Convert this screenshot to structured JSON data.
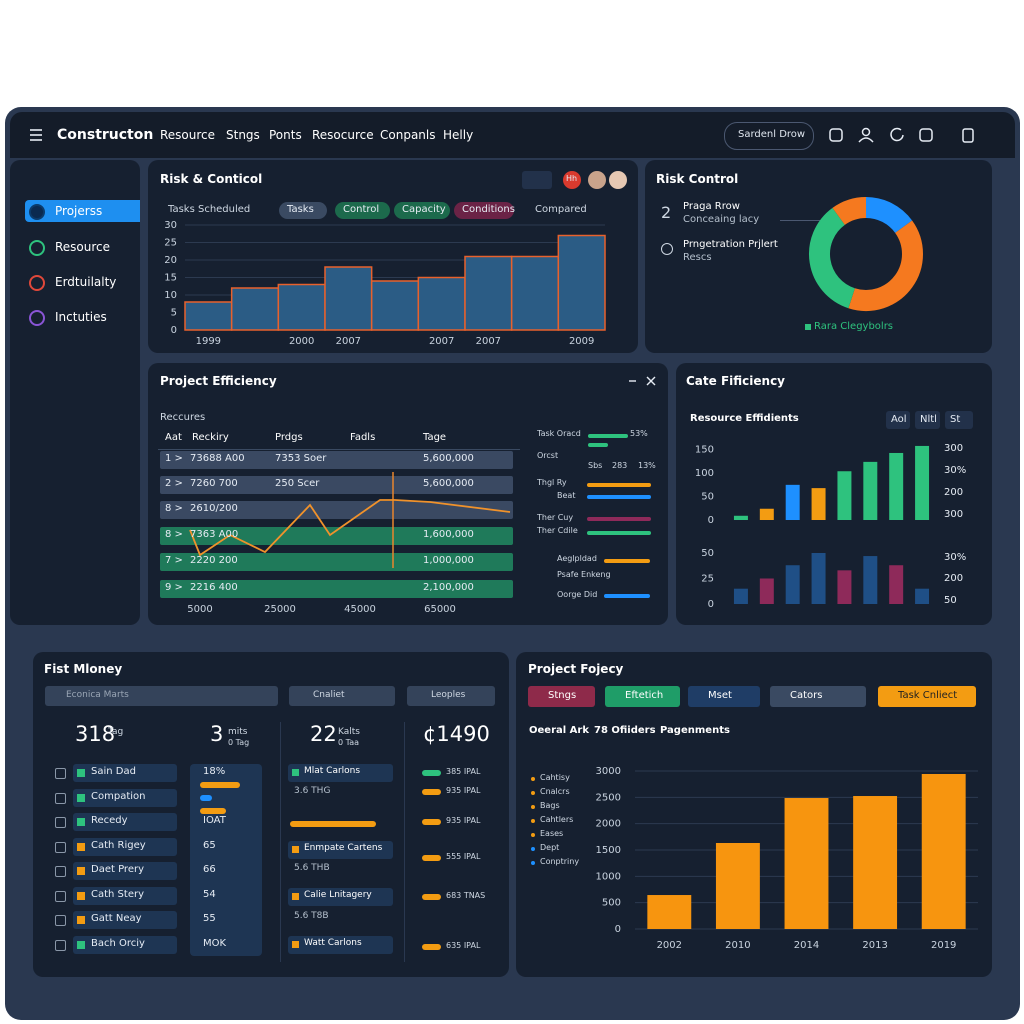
{
  "header": {
    "brand": "Constructon",
    "nav": [
      "Resource",
      "Stngs",
      "Ponts",
      "Resocurce",
      "Conpanls",
      "Helly"
    ],
    "search": "Sardenl Drow"
  },
  "sidebar": {
    "items": [
      "Projerss",
      "Resource",
      "Erdtuilalty",
      "Inctuties"
    ]
  },
  "risk_panel": {
    "title": "Risk & Conticol",
    "badge": "Hh",
    "caption": "Tasks Scheduled",
    "chips": [
      "Tasks",
      "Control",
      "Capacity",
      "Conditions"
    ],
    "trailing": "Compared"
  },
  "risk_control": {
    "title": "Risk Control",
    "num": "2",
    "items": [
      {
        "title": "Praga Rrow",
        "sub": "Conceaing lacy"
      },
      {
        "title": "Prngetration Prjlert",
        "sub": "Rescs"
      }
    ],
    "legend": "Rara Clegybolrs"
  },
  "efficiency": {
    "title": "Project Efficiency",
    "subtitle": "Reccures",
    "columns": [
      "Aat",
      "Reckiry",
      "Prdgs",
      "Fadls",
      "Tage"
    ],
    "rows": [
      {
        "idx": "1 >",
        "code": "73688 A00",
        "name": "7353 Soer",
        "total": "5,600,000"
      },
      {
        "idx": "2 >",
        "code": "7260 700",
        "name": "250 Scer",
        "total": "5,600,000"
      },
      {
        "idx": "8 >",
        "code": "2610/200"
      },
      {
        "idx": "8 >",
        "code": "7363 A00",
        "total": "1,600,000"
      },
      {
        "idx": "7 >",
        "code": "2220 200",
        "total": "1,000,000"
      },
      {
        "idx": "9 >",
        "code": "2216 400",
        "total": "2,100,000"
      }
    ],
    "side": [
      "Task Oracd",
      "53%",
      "Orcst",
      "Sbs",
      "283",
      "13%",
      "Thgl Ry",
      "Beat",
      "Ther Cuy",
      "Ther Cdile",
      "Aeglpldad",
      "Psafe Enkeng",
      "Oorge Did"
    ]
  },
  "resource_panel": {
    "title": "Cate Fificiency",
    "subtitle": "Resource Effidients",
    "buttons": [
      "Aol",
      "Nltl",
      "St"
    ],
    "right_top": [
      "300",
      "30%",
      "200",
      "300"
    ],
    "right_bottom": [
      "30%",
      "200",
      "50"
    ]
  },
  "money": {
    "title": "Fist Mloney",
    "search": "Econica Marts",
    "filters": [
      "Cnaliet",
      "Leoples"
    ],
    "stats": [
      {
        "value": "318",
        "unit": "Tag"
      },
      {
        "value": "3",
        "unit": "mits",
        "sub": "0 Tag"
      },
      {
        "value": "22",
        "unit": "Kalts",
        "sub": "0 Taa"
      },
      {
        "value": "¢1490"
      }
    ],
    "names": [
      "Sain Dad",
      "Compation",
      "Recedy",
      "Cath Rigey",
      "Daet Prery",
      "Cath Stery",
      "Gatt Neay",
      "Bach Orciy"
    ],
    "metrics": [
      "18%",
      "IOAT",
      "65",
      "66",
      "54",
      "55",
      "MOK"
    ],
    "cartons": [
      "Mlat Carlons",
      "3.6 THG",
      "Enmpate Cartens",
      "5.6 THB",
      "Calie Lnitagery",
      "5.6 T8B",
      "Watt Carlons"
    ],
    "ipal": [
      "385 IPAL",
      "935 IPAL",
      "935 IPAL",
      "555 IPAL",
      "683 TNAS",
      "635 IPAL"
    ]
  },
  "project": {
    "title": "Project Fojecy",
    "buttons": [
      "Stngs",
      "Eftetich",
      "Mset",
      "Cators",
      "Task Cnliect"
    ],
    "tabs": [
      "Oeeral Ark",
      "78 Ofiiders",
      "Pagenments"
    ],
    "list": [
      "Cahtisy",
      "Cnalcrs",
      "Bags",
      "Cahtlers",
      "Eases",
      "Dept",
      "Conptriny"
    ]
  },
  "chart_data": [
    {
      "type": "bar",
      "categories": [
        "1999",
        null,
        "2000",
        "2007",
        null,
        "2007",
        "2007",
        null,
        "2009"
      ],
      "values": [
        8,
        12,
        13,
        18,
        14,
        15,
        21,
        21,
        27
      ],
      "color": "#2b5c85",
      "edge": "#e8612c",
      "ylim": [
        0,
        30
      ],
      "yticks": [
        0,
        5,
        10,
        15,
        20,
        25,
        30
      ],
      "grid": true
    },
    {
      "type": "pie",
      "categories": [
        null,
        null,
        null,
        null
      ],
      "values": [
        15,
        40,
        35,
        10
      ],
      "colors": [
        "#1e90ff",
        "#f5791f",
        "#2ec27e",
        "#f5791f"
      ],
      "donut": true
    },
    {
      "type": "line",
      "x": [
        2500,
        5000,
        12500,
        21250,
        32500,
        37500,
        50000,
        53750,
        62500,
        82500
      ],
      "values": [
        40,
        15,
        35,
        18,
        65,
        35,
        70,
        70,
        68,
        58
      ],
      "color": "#f0922b",
      "xlim": [
        0,
        85000
      ],
      "ylim": [
        0,
        100
      ],
      "xticks": [
        5000,
        25000,
        45000,
        65000
      ]
    },
    {
      "type": "bar",
      "categories": [
        null,
        null,
        null,
        null,
        null,
        null,
        null,
        null
      ],
      "values": [
        9,
        24,
        75,
        68,
        104,
        124,
        143,
        158
      ],
      "colors": [
        "#2ec27e",
        "#f39c12",
        "#1e90ff",
        "#f39c12",
        "#2ec27e",
        "#2ec27e",
        "#2ec27e",
        "#2ec27e"
      ],
      "ylim": [
        0,
        160
      ],
      "yticks": [
        0,
        50,
        100,
        150
      ],
      "grid": false
    },
    {
      "type": "bar",
      "categories": [
        null,
        null,
        null,
        null,
        null,
        null,
        null,
        null
      ],
      "values": [
        15,
        25,
        38,
        50,
        33,
        47,
        38,
        15
      ],
      "colors": [
        "#1f4f86",
        "#8e2a5a",
        "#1f4f86",
        "#1f4f86",
        "#8e2a5a",
        "#1f4f86",
        "#8e2a5a",
        "#1f4f86"
      ],
      "ylim": [
        0,
        50
      ],
      "yticks": [
        0,
        25,
        50
      ],
      "grid": false
    },
    {
      "type": "bar",
      "categories": [
        "2002",
        "2010",
        "2014",
        "2013",
        "2019"
      ],
      "values": [
        645,
        1633,
        2487,
        2525,
        2943
      ],
      "color": "#f7950f",
      "ylim": [
        0,
        3000
      ],
      "yticks": [
        0,
        500,
        1000,
        1500,
        2000,
        2500,
        3000
      ],
      "grid": true
    }
  ]
}
